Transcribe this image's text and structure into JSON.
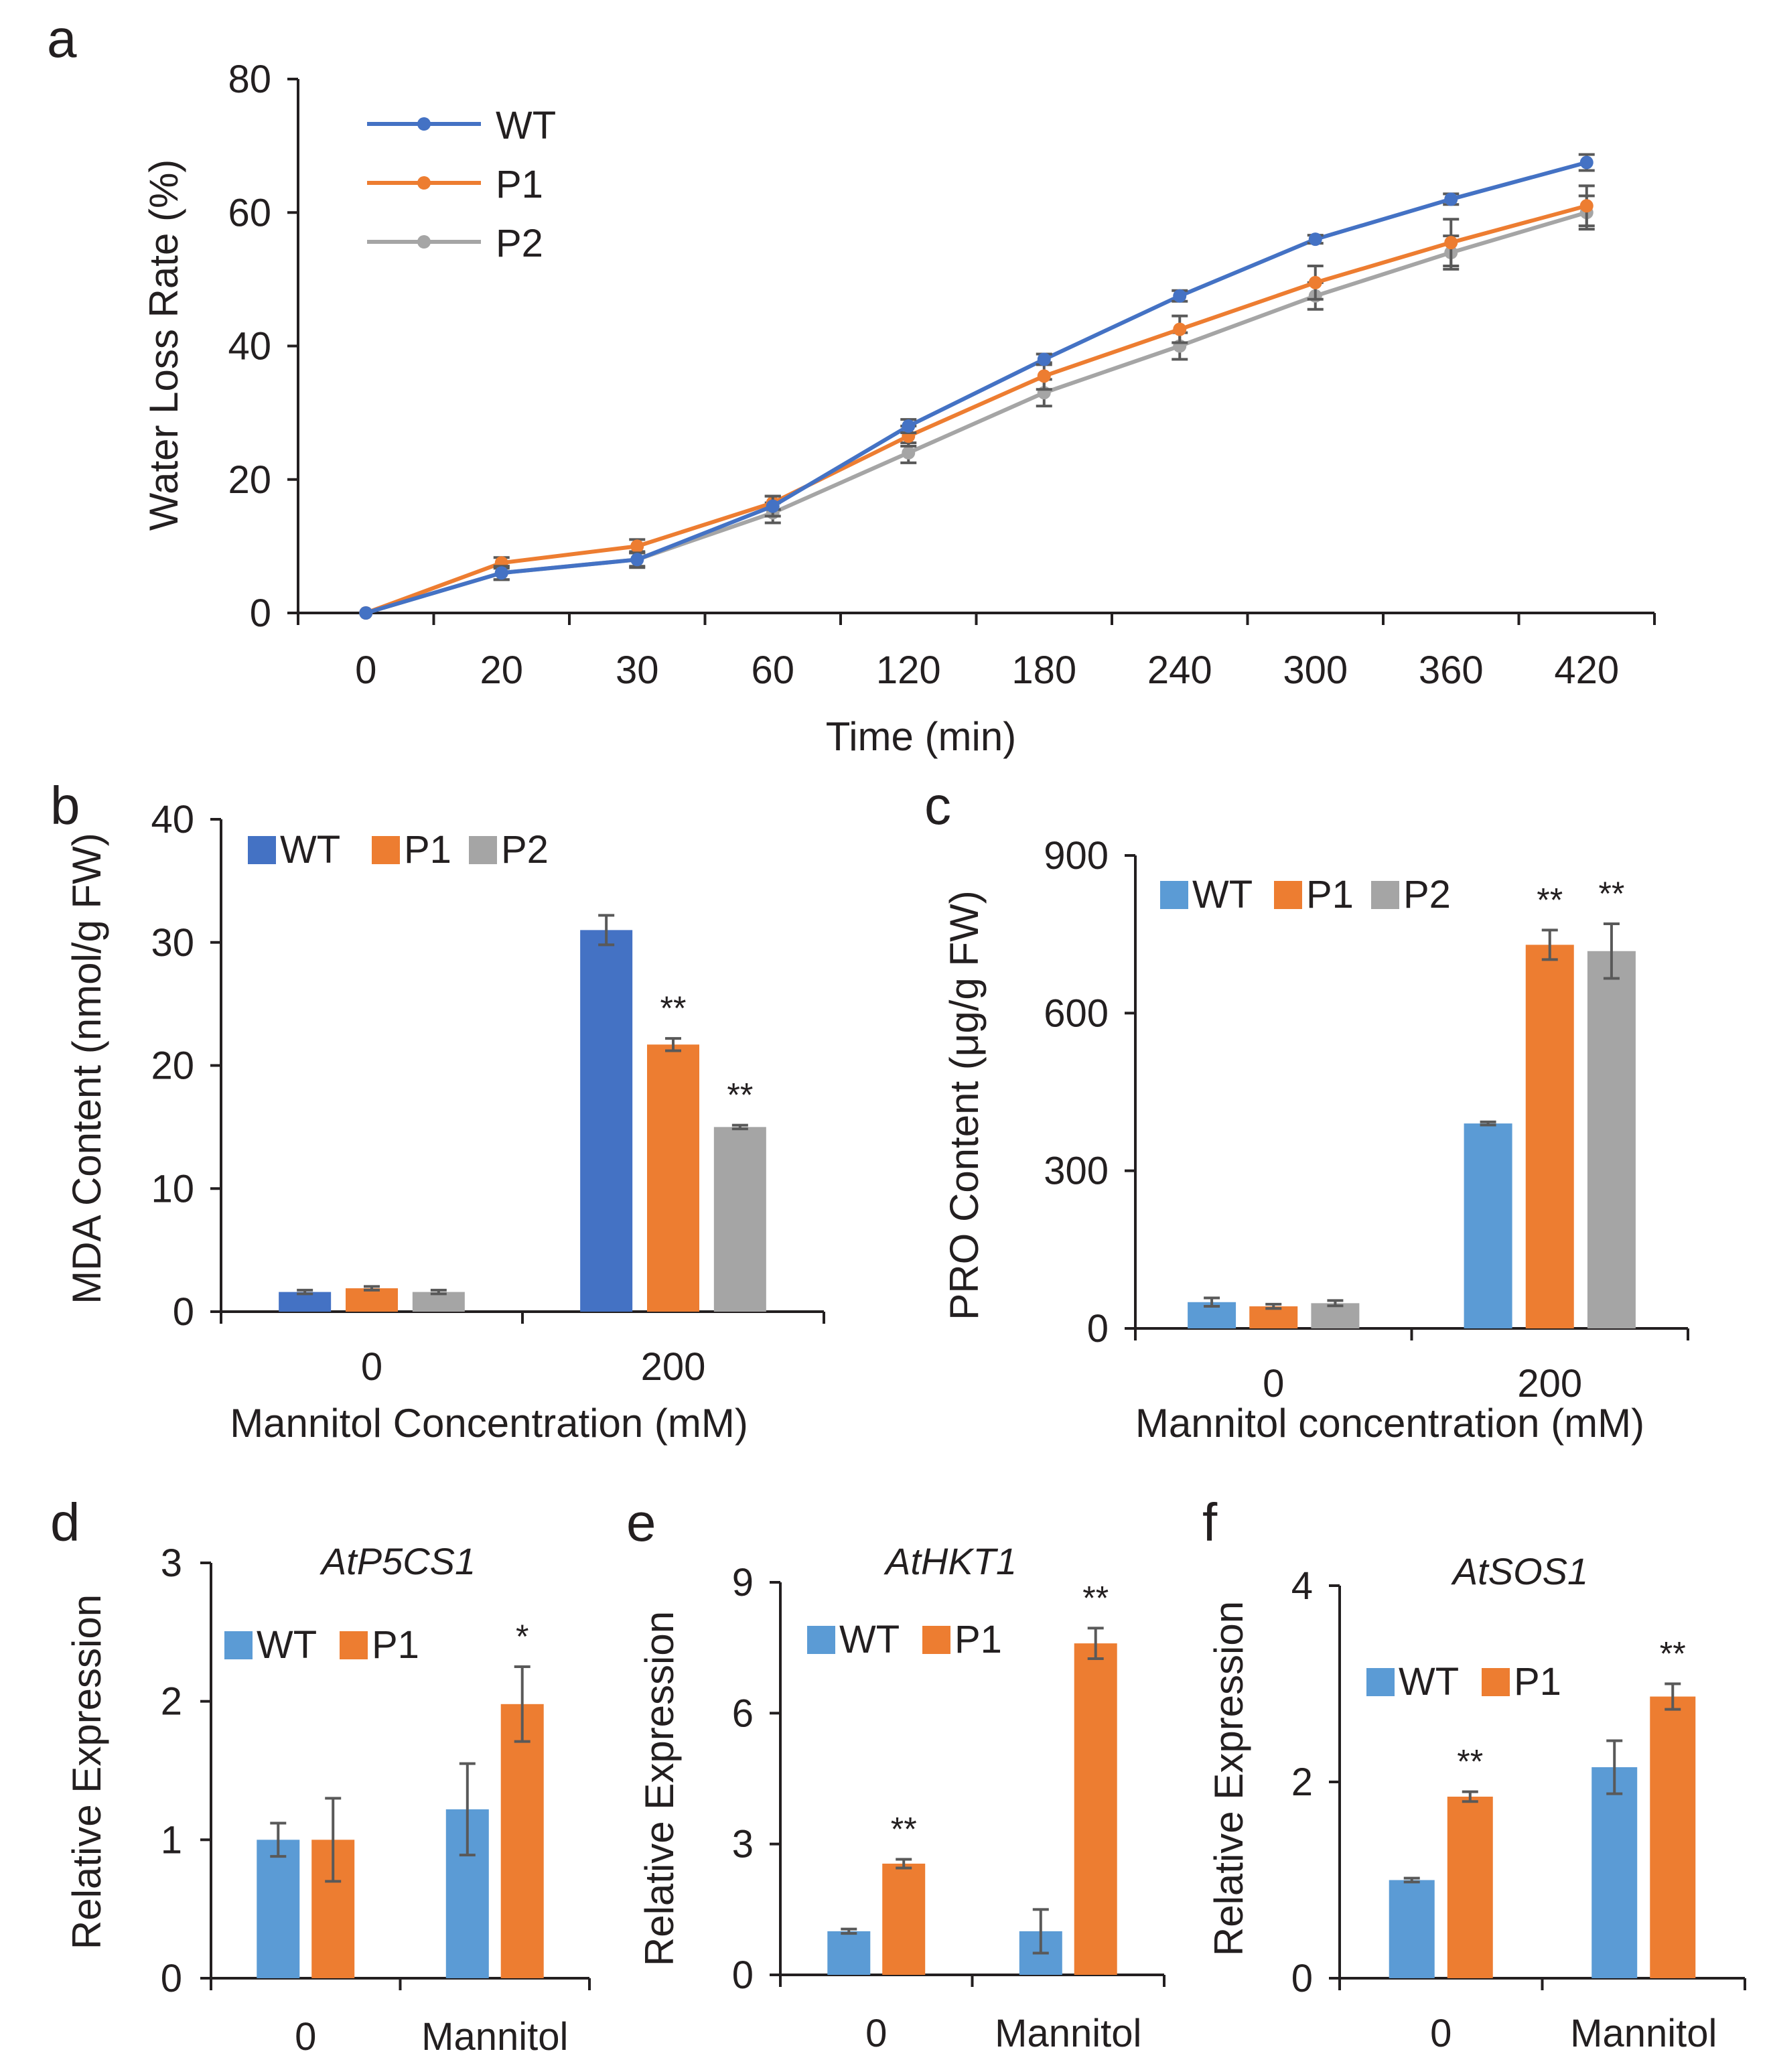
{
  "chart_data": [
    {
      "id": "a",
      "type": "line",
      "panel_label": "a",
      "title": "",
      "xlabel": "Time (min)",
      "ylabel": "Water Loss Rate (%)",
      "categories": [
        "0",
        "20",
        "30",
        "60",
        "120",
        "180",
        "240",
        "300",
        "360",
        "420"
      ],
      "ylim": [
        0,
        80
      ],
      "yticks": [
        0,
        20,
        40,
        60,
        80
      ],
      "legend_position": "top-left",
      "series": [
        {
          "name": "WT",
          "color": "#4472c4",
          "values": [
            0,
            6,
            8,
            16,
            28,
            38,
            47.5,
            56,
            62,
            67.5
          ],
          "errors": [
            0,
            1,
            1,
            1.5,
            1,
            0.8,
            0.8,
            0.6,
            0.8,
            1.2
          ]
        },
        {
          "name": "P1",
          "color": "#ed7d31",
          "values": [
            0,
            7.5,
            10,
            16.5,
            26.5,
            35.5,
            42.5,
            49.5,
            55.5,
            61
          ],
          "errors": [
            0,
            0.8,
            1,
            1,
            1.5,
            2,
            2,
            2.5,
            3.5,
            3
          ]
        },
        {
          "name": "P2",
          "color": "#a5a5a5",
          "values": [
            0,
            6,
            8,
            15,
            24,
            33,
            40,
            47.5,
            54,
            60
          ],
          "errors": [
            0,
            1,
            1.2,
            1.5,
            1.5,
            2,
            2,
            2,
            2.5,
            2.5
          ]
        }
      ]
    },
    {
      "id": "b",
      "type": "bar",
      "panel_label": "b",
      "title": "",
      "xlabel": "Mannitol Concentration (mM)",
      "ylabel": "MDA Content (nmol/g FW)",
      "categories": [
        "0",
        "200"
      ],
      "ylim": [
        0,
        40
      ],
      "yticks": [
        0,
        10,
        20,
        30,
        40
      ],
      "legend_position": "top-left",
      "series": [
        {
          "name": "WT",
          "color": "#4472c4",
          "values": [
            1.6,
            31
          ],
          "errors": [
            0.15,
            1.2
          ]
        },
        {
          "name": "P1",
          "color": "#ed7d31",
          "values": [
            1.9,
            21.7
          ],
          "errors": [
            0.15,
            0.5
          ]
        },
        {
          "name": "P2",
          "color": "#a5a5a5",
          "values": [
            1.6,
            15
          ],
          "errors": [
            0.15,
            0.15
          ]
        }
      ],
      "annotations": [
        {
          "text": "**",
          "category": "200",
          "series": "P1"
        },
        {
          "text": "**",
          "category": "200",
          "series": "P2"
        }
      ]
    },
    {
      "id": "c",
      "type": "bar",
      "panel_label": "c",
      "title": "",
      "xlabel": "Mannitol concentration (mM)",
      "ylabel": "PRO Content (μg/g FW)",
      "categories": [
        "0",
        "200"
      ],
      "ylim": [
        0,
        900
      ],
      "yticks": [
        0,
        300,
        600,
        900
      ],
      "legend_position": "top-left",
      "series": [
        {
          "name": "WT",
          "color": "#5b9bd5",
          "values": [
            50,
            390
          ],
          "errors": [
            8,
            3
          ]
        },
        {
          "name": "P1",
          "color": "#ed7d31",
          "values": [
            42,
            730
          ],
          "errors": [
            4,
            28
          ]
        },
        {
          "name": "P2",
          "color": "#a5a5a5",
          "values": [
            48,
            718
          ],
          "errors": [
            5,
            52
          ]
        }
      ],
      "annotations": [
        {
          "text": "**",
          "category": "200",
          "series": "P1"
        },
        {
          "text": "**",
          "category": "200",
          "series": "P2"
        }
      ]
    },
    {
      "id": "d",
      "type": "bar",
      "panel_label": "d",
      "title": "AtP5CS1",
      "xlabel": "",
      "ylabel": "Relative Expression",
      "categories": [
        "0",
        "Mannitol"
      ],
      "ylim": [
        0,
        3
      ],
      "yticks": [
        0,
        1,
        2,
        3
      ],
      "legend_position": "top-left",
      "series": [
        {
          "name": "WT",
          "color": "#5b9bd5",
          "values": [
            1.0,
            1.22
          ],
          "errors": [
            0.12,
            0.33
          ]
        },
        {
          "name": "P1",
          "color": "#ed7d31",
          "values": [
            1.0,
            1.98
          ],
          "errors": [
            0.3,
            0.27
          ]
        }
      ],
      "annotations": [
        {
          "text": "*",
          "category": "Mannitol",
          "series": "P1"
        }
      ]
    },
    {
      "id": "e",
      "type": "bar",
      "panel_label": "e",
      "title": "AtHKT1",
      "xlabel": "",
      "ylabel": "Relative Expression",
      "categories": [
        "0",
        "Mannitol"
      ],
      "ylim": [
        0,
        9
      ],
      "yticks": [
        0,
        3,
        6,
        9
      ],
      "legend_position": "top-left",
      "series": [
        {
          "name": "WT",
          "color": "#5b9bd5",
          "values": [
            1.0,
            1.0
          ],
          "errors": [
            0.05,
            0.5
          ]
        },
        {
          "name": "P1",
          "color": "#ed7d31",
          "values": [
            2.55,
            7.6
          ],
          "errors": [
            0.1,
            0.35
          ]
        }
      ],
      "annotations": [
        {
          "text": "**",
          "category": "0",
          "series": "P1"
        },
        {
          "text": "**",
          "category": "Mannitol",
          "series": "P1"
        }
      ]
    },
    {
      "id": "f",
      "type": "bar",
      "panel_label": "f",
      "title": "AtSOS1",
      "xlabel": "",
      "ylabel": "Relative Expression",
      "categories": [
        "0",
        "Mannitol"
      ],
      "ylim": [
        0,
        4
      ],
      "yticks": [
        0,
        2,
        4
      ],
      "legend_position": "top-left",
      "series": [
        {
          "name": "WT",
          "color": "#5b9bd5",
          "values": [
            1.0,
            2.15
          ],
          "errors": [
            0.02,
            0.27
          ]
        },
        {
          "name": "P1",
          "color": "#ed7d31",
          "values": [
            1.85,
            2.87
          ],
          "errors": [
            0.05,
            0.13
          ]
        }
      ],
      "annotations": [
        {
          "text": "**",
          "category": "0",
          "series": "P1"
        },
        {
          "text": "**",
          "category": "Mannitol",
          "series": "P1"
        }
      ]
    }
  ]
}
